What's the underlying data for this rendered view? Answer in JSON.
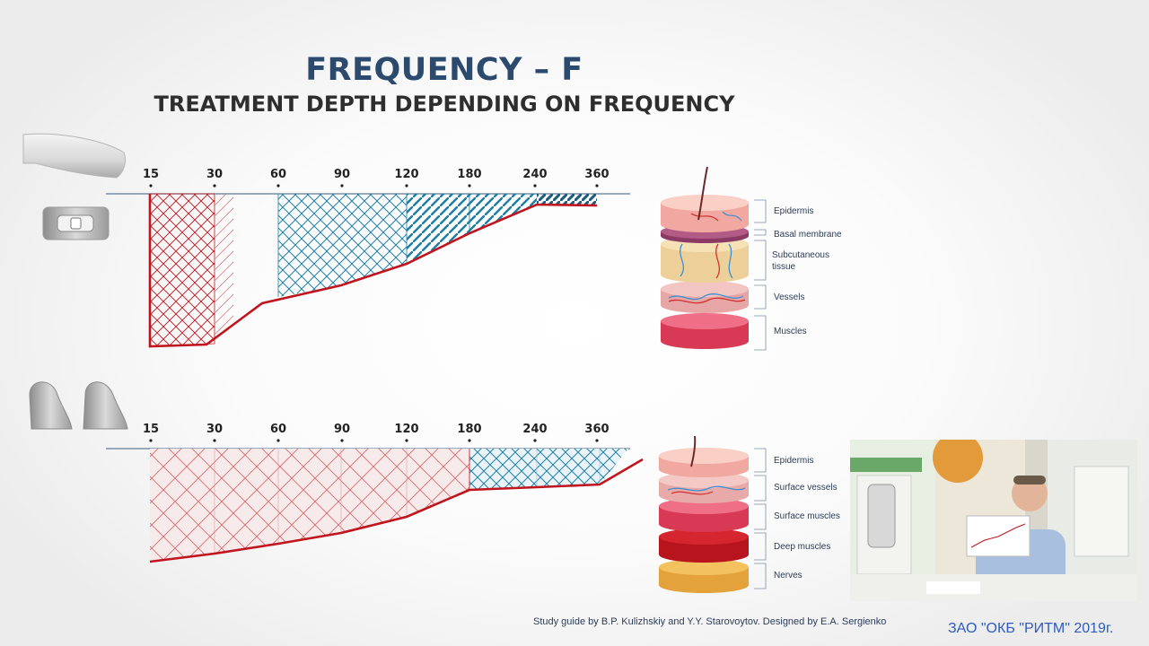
{
  "title": "FREQUENCY – F",
  "subtitle": "TREATMENT DEPTH DEPENDING ON FREQUENCY",
  "top_diagram": {
    "ticks": [
      "15",
      "30",
      "60",
      "90",
      "120",
      "180",
      "240",
      "360"
    ],
    "layers": [
      "Epidermis",
      "Basal membrane",
      "Subcutaneous tissue",
      "Vessels",
      "Muscles"
    ]
  },
  "bottom_diagram": {
    "ticks": [
      "15",
      "30",
      "60",
      "90",
      "120",
      "180",
      "240",
      "360"
    ],
    "layers": [
      "Epidermis",
      "Surface vessels",
      "Surface muscles",
      "Deep muscles",
      "Nerves"
    ]
  },
  "credit": "Study guide by B.P. Kulizhskiy and Y.Y. Starovoytov. Designed by E.A. Sergienko",
  "company": "ЗАО \"ОКБ \"РИТМ\"  2019г.",
  "colors": {
    "title": "#2c4a6e",
    "depth_line": "#c0141e",
    "red_hatch": "#c0141e",
    "blue_hatch": "#1f7fa3",
    "dark_blue": "#1a5b80"
  }
}
